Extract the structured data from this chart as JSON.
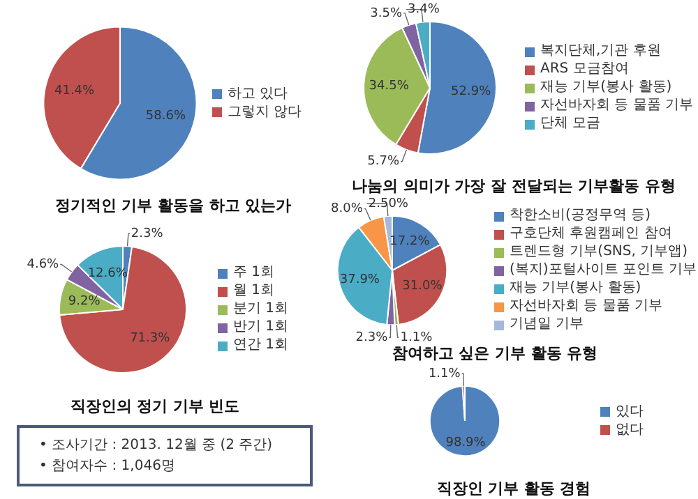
{
  "chart_data": [
    {
      "type": "pie",
      "title": "정기적인 기부 활동을 하고 있는가",
      "categories": [
        "하고 있다",
        "그렇지 않다"
      ],
      "values": [
        58.6,
        41.4
      ],
      "colors": [
        "#4f81bd",
        "#c0504d"
      ],
      "value_labels": [
        "58.6%",
        "41.4%"
      ],
      "legend": "right"
    },
    {
      "type": "pie",
      "title": "나눔의 의미가 가장 잘 전달되는 기부활동 유형",
      "categories": [
        "복지단체,기관 후원",
        "ARS 모금참여",
        "재능 기부(봉사 활동)",
        "자선바자회 등 물품 기부",
        "단체 모금"
      ],
      "values": [
        52.9,
        5.7,
        34.5,
        3.5,
        3.4
      ],
      "colors": [
        "#4f81bd",
        "#c0504d",
        "#9bbb59",
        "#8064a2",
        "#4bacc6"
      ],
      "value_labels": [
        "52.9%",
        "5.7%",
        "34.5%",
        "3.5%",
        "3.4%"
      ],
      "legend": "right"
    },
    {
      "type": "pie",
      "title": "직장인의 정기 기부 빈도",
      "categories": [
        "주 1회",
        "월 1회",
        "분기 1회",
        "반기 1회",
        "연간 1회"
      ],
      "values": [
        2.3,
        71.3,
        9.2,
        4.6,
        12.6
      ],
      "colors": [
        "#4f81bd",
        "#c0504d",
        "#9bbb59",
        "#8064a2",
        "#4bacc6"
      ],
      "value_labels": [
        "2.3%",
        "71.3%",
        "9.2%",
        "4.6%",
        "12.6%"
      ],
      "legend": "right"
    },
    {
      "type": "pie",
      "title": "참여하고 싶은 기부 활동 유형",
      "categories": [
        "착한소비(공정무역 등)",
        "구호단체 후원캠페인 참여",
        "트렌드형 기부(SNS, 기부앱)",
        "(복지)포털사이트 포인트 기부",
        "재능 기부(봉사 활동)",
        "자선바자회 등 물품 기부",
        "기념일 기부"
      ],
      "values": [
        17.2,
        31.0,
        1.1,
        2.3,
        37.9,
        8.0,
        2.5
      ],
      "colors": [
        "#4f81bd",
        "#c0504d",
        "#9bbb59",
        "#8064a2",
        "#4bacc6",
        "#f79646",
        "#a5b8dc"
      ],
      "value_labels": [
        "17.2%",
        "31.0%",
        "1.1%",
        "2.3%",
        "37.9%",
        "8.0%",
        "2.50%"
      ],
      "legend": "right"
    },
    {
      "type": "pie",
      "title": "직장인 기부 활동 경험",
      "categories": [
        "있다",
        "없다"
      ],
      "values": [
        98.9,
        1.1
      ],
      "colors": [
        "#4f81bd",
        "#c0504d"
      ],
      "value_labels": [
        "98.9%",
        "1.1%"
      ],
      "legend": "right"
    },
    {
      "type": "other",
      "annotations": [
        "• 조사기간 : 2013. 12월 중 (2 주간)",
        "• 참여자수 : 1,046명"
      ]
    }
  ]
}
